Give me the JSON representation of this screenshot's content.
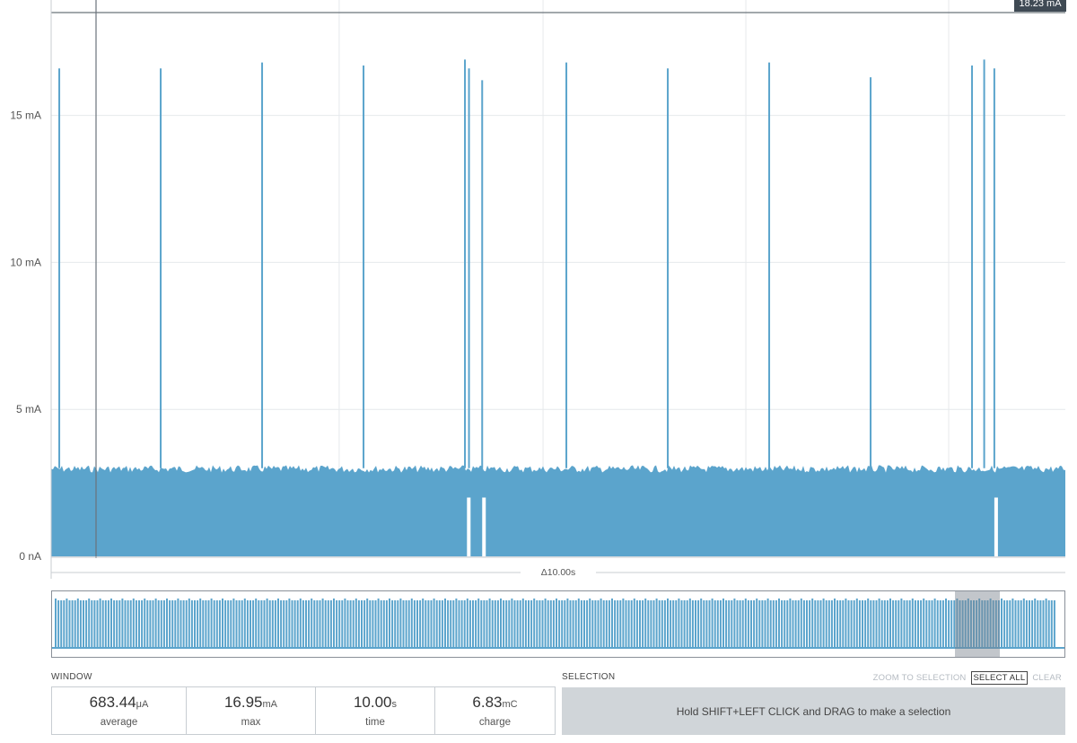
{
  "cursor": {
    "value_label": "18.23 mA"
  },
  "chart_data": {
    "type": "line",
    "title": "",
    "xlabel": "",
    "ylabel": "",
    "y_ticks": [
      "0 nA",
      "5 mA",
      "10 mA",
      "15 mA"
    ],
    "y_tick_values": [
      0,
      5,
      10,
      15
    ],
    "ylim": [
      0,
      18.5
    ],
    "x_range_s": [
      0,
      10
    ],
    "grid": true,
    "color": "#5ba4cc",
    "baseline_max_mA": 3.1,
    "spikes": [
      {
        "t": 0.08,
        "mA": 16.6
      },
      {
        "t": 1.08,
        "mA": 16.6
      },
      {
        "t": 2.08,
        "mA": 16.8
      },
      {
        "t": 3.08,
        "mA": 16.7
      },
      {
        "t": 4.08,
        "mA": 16.9
      },
      {
        "t": 4.12,
        "mA": 16.6
      },
      {
        "t": 4.25,
        "mA": 16.2
      },
      {
        "t": 5.08,
        "mA": 16.8
      },
      {
        "t": 6.08,
        "mA": 16.6
      },
      {
        "t": 7.08,
        "mA": 16.8
      },
      {
        "t": 8.08,
        "mA": 16.3
      },
      {
        "t": 9.08,
        "mA": 16.7
      },
      {
        "t": 9.2,
        "mA": 16.9
      },
      {
        "t": 9.3,
        "mA": 16.6
      }
    ],
    "delta_label": "Δ10.00s"
  },
  "window": {
    "title": "WINDOW",
    "stats": [
      {
        "value": "683.44",
        "unit": "μA",
        "label": "average"
      },
      {
        "value": "16.95",
        "unit": "mA",
        "label": "max"
      },
      {
        "value": "10.00",
        "unit": "s",
        "label": "time"
      },
      {
        "value": "6.83",
        "unit": "mC",
        "label": "charge"
      }
    ]
  },
  "selection": {
    "title": "SELECTION",
    "buttons": {
      "zoom": "ZOOM TO SELECTION",
      "select_all": "SELECT ALL",
      "clear": "CLEAR"
    },
    "hint": "Hold SHIFT+LEFT CLICK and DRAG to make a selection"
  }
}
